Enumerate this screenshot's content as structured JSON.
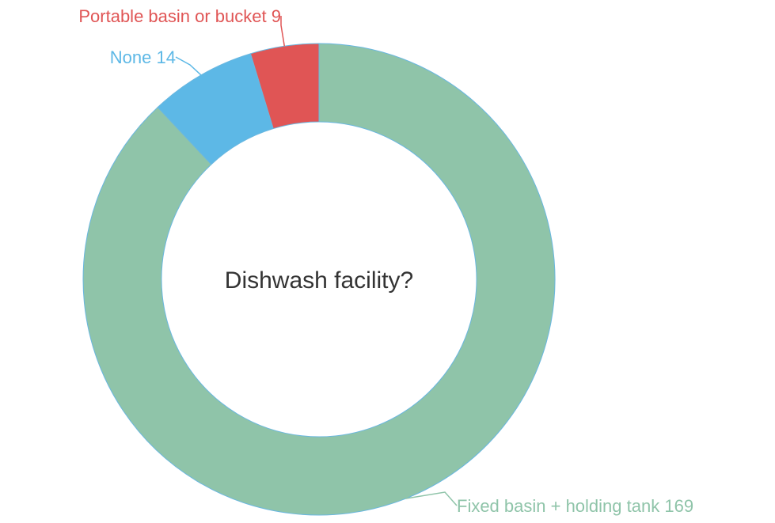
{
  "chart_data": {
    "type": "pie",
    "title": "Dishwash facility?",
    "categories": [
      "Fixed basin + holding tank",
      "None",
      "Portable basin or bucket"
    ],
    "values": [
      169,
      14,
      9
    ],
    "colors": [
      "#8fc4a9",
      "#5db8e6",
      "#e05555"
    ]
  }
}
